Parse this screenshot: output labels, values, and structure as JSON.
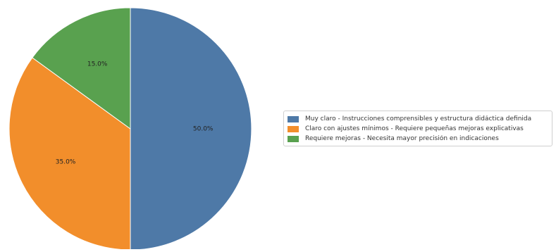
{
  "chart_data": {
    "type": "pie",
    "title": "",
    "start_angle_deg": 90,
    "direction": "clockwise",
    "legend_position": "center-right",
    "slices": [
      {
        "label": "Muy claro - Instrucciones comprensibles y estructura didáctica definida",
        "value": 50.0,
        "pct_label": "50.0%",
        "color": "#4e79a7"
      },
      {
        "label": "Claro con ajustes mínimos - Requiere pequeñas mejoras explicativas",
        "value": 35.0,
        "pct_label": "35.0%",
        "color": "#f28e2b"
      },
      {
        "label": "Requiere mejoras - Necesita mayor precisión en indicaciones",
        "value": 15.0,
        "pct_label": "15.0%",
        "color": "#59a14f"
      }
    ]
  }
}
